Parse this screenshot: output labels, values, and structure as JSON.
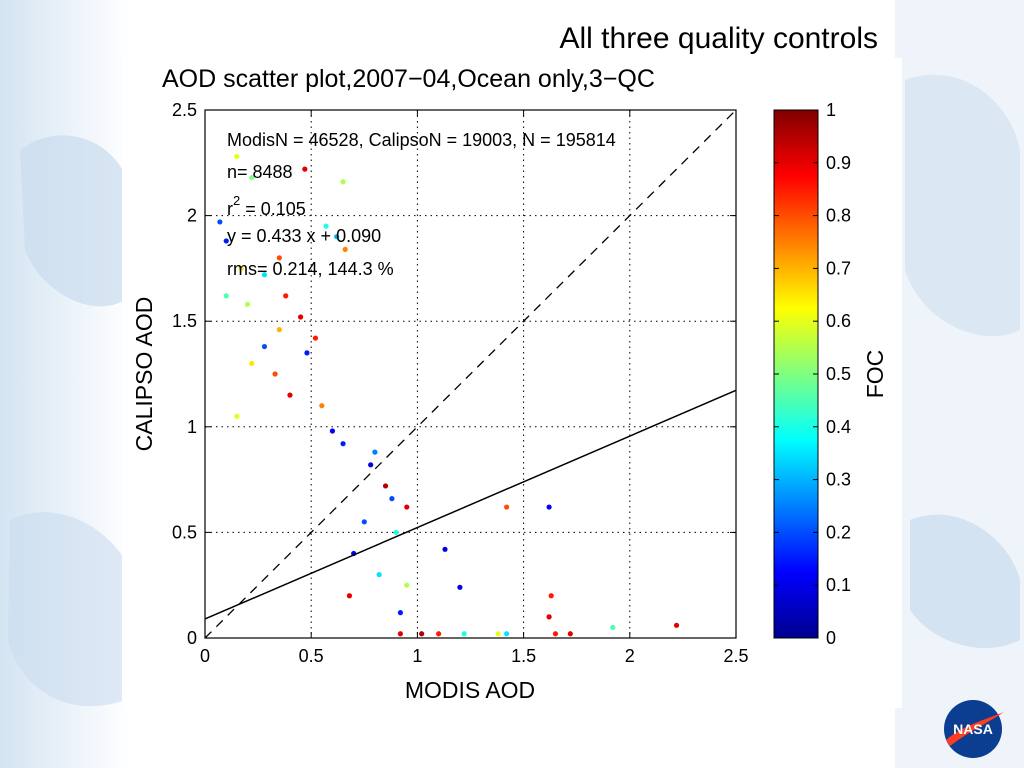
{
  "slide": {
    "title": "All three quality controls",
    "logo_text": "NASA"
  },
  "colors": {
    "nasa_blue": "#0b3d91",
    "nasa_red": "#fc3d21",
    "background_wash": "#dce9f5"
  },
  "chart_data": {
    "type": "scatter",
    "title": "AOD scatter plot,2007−04,Ocean only,3−QC",
    "xlabel": "MODIS AOD",
    "ylabel": "CALIPSO AOD",
    "xlim": [
      0,
      2.5
    ],
    "ylim": [
      0,
      2.5
    ],
    "xticks": [
      "0",
      "0.5",
      "1",
      "1.5",
      "2",
      "2.5"
    ],
    "yticks": [
      "0",
      "0.5",
      "1",
      "1.5",
      "2",
      "2.5"
    ],
    "grid": "dotted",
    "colorbar": {
      "label": "FOC",
      "min": 0,
      "max": 1,
      "ticks": [
        "0",
        "0.1",
        "0.2",
        "0.3",
        "0.4",
        "0.5",
        "0.6",
        "0.7",
        "0.8",
        "0.9",
        "1"
      ],
      "colormap": "jet"
    },
    "annotations": {
      "counts": "ModisN = 46528,  CalipsoN = 19003,  N = 195814",
      "n": "n= 8488",
      "r2_prefix": "r",
      "r2_sup": "2",
      "r2_value": " = 0.105",
      "fit": "y = 0.433 x + 0.090",
      "rms": "rms= 0.214, 144.3 %"
    },
    "lines": {
      "one_to_one": {
        "slope": 1,
        "intercept": 0,
        "style": "dashed"
      },
      "regression": {
        "slope": 0.433,
        "intercept": 0.09,
        "style": "solid"
      }
    },
    "points": [
      [
        0.07,
        1.97,
        0.2
      ],
      [
        0.1,
        1.88,
        0.15
      ],
      [
        0.15,
        2.28,
        0.6
      ],
      [
        0.22,
        2.18,
        0.5
      ],
      [
        0.47,
        2.22,
        0.9
      ],
      [
        0.65,
        2.16,
        0.55
      ],
      [
        0.57,
        1.95,
        0.4
      ],
      [
        0.62,
        1.9,
        0.3
      ],
      [
        0.17,
        1.75,
        0.65
      ],
      [
        0.28,
        1.72,
        0.35
      ],
      [
        0.35,
        1.8,
        0.8
      ],
      [
        0.66,
        1.84,
        0.75
      ],
      [
        0.38,
        1.62,
        0.85
      ],
      [
        0.1,
        1.62,
        0.45
      ],
      [
        0.2,
        1.58,
        0.55
      ],
      [
        0.45,
        1.52,
        0.9
      ],
      [
        0.52,
        1.42,
        0.85
      ],
      [
        0.35,
        1.46,
        0.7
      ],
      [
        0.28,
        1.38,
        0.2
      ],
      [
        0.48,
        1.35,
        0.15
      ],
      [
        0.22,
        1.3,
        0.65
      ],
      [
        0.33,
        1.25,
        0.8
      ],
      [
        0.4,
        1.15,
        0.9
      ],
      [
        0.55,
        1.1,
        0.75
      ],
      [
        0.15,
        1.05,
        0.6
      ],
      [
        0.6,
        0.98,
        0.12
      ],
      [
        0.65,
        0.92,
        0.15
      ],
      [
        0.8,
        0.88,
        0.25
      ],
      [
        0.78,
        0.82,
        0.1
      ],
      [
        0.85,
        0.72,
        0.95
      ],
      [
        0.88,
        0.66,
        0.2
      ],
      [
        0.95,
        0.62,
        0.9
      ],
      [
        0.75,
        0.55,
        0.2
      ],
      [
        0.9,
        0.5,
        0.4
      ],
      [
        1.13,
        0.42,
        0.1
      ],
      [
        1.2,
        0.24,
        0.1
      ],
      [
        1.42,
        0.62,
        0.8
      ],
      [
        1.62,
        0.62,
        0.12
      ],
      [
        1.63,
        0.2,
        0.85
      ],
      [
        1.62,
        0.1,
        0.9
      ],
      [
        1.92,
        0.05,
        0.45
      ],
      [
        2.22,
        0.06,
        0.9
      ],
      [
        0.92,
        0.02,
        0.9
      ],
      [
        1.02,
        0.02,
        0.95
      ],
      [
        1.1,
        0.02,
        0.85
      ],
      [
        1.22,
        0.02,
        0.4
      ],
      [
        1.38,
        0.02,
        0.6
      ],
      [
        1.42,
        0.02,
        0.35
      ],
      [
        1.65,
        0.02,
        0.85
      ],
      [
        1.72,
        0.02,
        0.9
      ],
      [
        0.95,
        0.25,
        0.55
      ],
      [
        0.82,
        0.3,
        0.35
      ],
      [
        0.92,
        0.12,
        0.15
      ],
      [
        0.7,
        0.4,
        0.12
      ],
      [
        0.68,
        0.2,
        0.9
      ]
    ]
  }
}
